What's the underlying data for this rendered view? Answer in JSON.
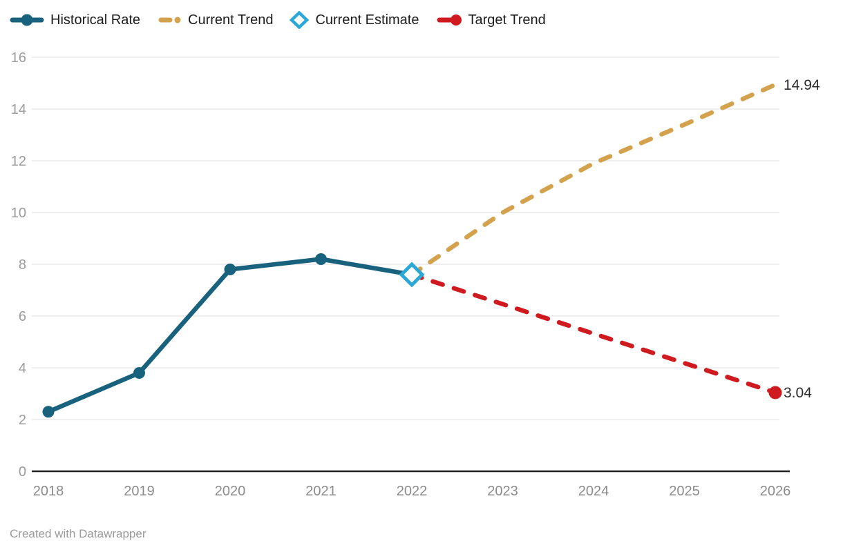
{
  "footer": {
    "attribution": "Created with Datawrapper"
  },
  "chart_data": {
    "type": "line",
    "title": "",
    "xlabel": "",
    "ylabel": "",
    "categories": [
      "2018",
      "2019",
      "2020",
      "2021",
      "2022",
      "2023",
      "2024",
      "2025",
      "2026"
    ],
    "y_ticks": [
      0,
      2,
      4,
      6,
      8,
      10,
      12,
      14,
      16
    ],
    "ylim": [
      0,
      16
    ],
    "grid": true,
    "legend_position": "top",
    "series": [
      {
        "name": "Historical Rate",
        "key": "historical",
        "color": "#19627e",
        "style": "solid",
        "x": [
          "2018",
          "2019",
          "2020",
          "2021",
          "2022"
        ],
        "values": [
          2.3,
          3.8,
          7.8,
          8.2,
          7.6
        ],
        "markers": {
          "shape": "dot",
          "radius": 8.5,
          "points": [
            "2018",
            "2019",
            "2020",
            "2021"
          ]
        }
      },
      {
        "name": "Current Trend",
        "key": "current_trend",
        "color": "#d4a24d",
        "style": "dashed",
        "x": [
          "2022",
          "2023",
          "2024",
          "2025",
          "2026"
        ],
        "values": [
          7.6,
          10.0,
          11.9,
          13.4,
          14.94
        ],
        "end_label": "14.94"
      },
      {
        "name": "Current Estimate",
        "key": "current_estimate",
        "color": "#2ba8d8",
        "style": "marker-only",
        "x": [
          "2022"
        ],
        "values": [
          7.6
        ],
        "markers": {
          "shape": "diamond-open",
          "radius": 15,
          "points": [
            "2022"
          ]
        }
      },
      {
        "name": "Target Trend",
        "key": "target_trend",
        "color": "#cf1b20",
        "style": "dashed",
        "x": [
          "2022",
          "2026"
        ],
        "values": [
          7.6,
          3.04
        ],
        "end_label": "3.04",
        "markers": {
          "shape": "dot",
          "radius": 9.5,
          "points": [
            "2026"
          ]
        }
      }
    ],
    "colors": {
      "background": "#ffffff",
      "grid": "#e8e8e8",
      "axis": "#222222",
      "tick_label_y": "#9c9c9c",
      "tick_label_x": "#8b8b8b",
      "end_label": "#2b2b2b",
      "legend_text": "#1c1c1c",
      "footer_text": "#9b9b9b"
    }
  }
}
